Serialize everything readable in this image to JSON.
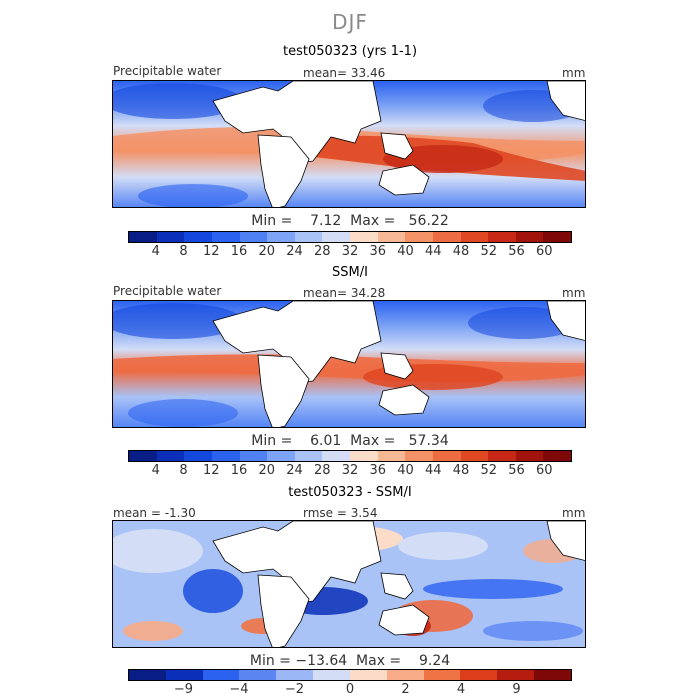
{
  "season": "DJF",
  "colors": {
    "abs": [
      "#081d85",
      "#0b2fb8",
      "#1447dd",
      "#2c62f0",
      "#4f80f4",
      "#7ea4f5",
      "#a9c3f7",
      "#d3ddf6",
      "#fbdcc9",
      "#f7b896",
      "#f39266",
      "#ed6c42",
      "#df4823",
      "#c62815",
      "#a2140b",
      "#7e0707"
    ],
    "diff": [
      "#081d85",
      "#0b2fb8",
      "#2c62f0",
      "#5b86f2",
      "#9bb7f6",
      "#d3ddf6",
      "#fbdcc9",
      "#f7ab86",
      "#ef7344",
      "#dc3e1c",
      "#b51d10",
      "#7e0707"
    ],
    "land": "#ffffff"
  },
  "panels": [
    {
      "subtitle": "test050323 (yrs 1-1)",
      "left_label": "Precipitable water",
      "center_label": "mean=   33.46",
      "unit": "mm",
      "minmax": "Min =    7.12  Max =   56.22",
      "ticks": [
        "4",
        "8",
        "12",
        "16",
        "20",
        "24",
        "28",
        "32",
        "36",
        "40",
        "44",
        "48",
        "52",
        "56",
        "60"
      ],
      "field_stats": {
        "mean": 33.46,
        "min": 7.12,
        "max": 56.22
      }
    },
    {
      "subtitle": "SSM/I",
      "left_label": "Precipitable water",
      "center_label": "mean=   34.28",
      "unit": "mm",
      "minmax": "Min =    6.01  Max =   57.34",
      "ticks": [
        "4",
        "8",
        "12",
        "16",
        "20",
        "24",
        "28",
        "32",
        "36",
        "40",
        "44",
        "48",
        "52",
        "56",
        "60"
      ],
      "field_stats": {
        "mean": 34.28,
        "min": 6.01,
        "max": 57.34
      }
    },
    {
      "subtitle": "test050323 - SSM/I",
      "left_label": "mean =   -1.30",
      "center_label": "rmse =    3.54",
      "unit": "mm",
      "minmax": "Min = −13.64  Max =    9.24",
      "ticks": [
        "−9",
        "−4",
        "−2",
        "0",
        "2",
        "4",
        "9"
      ],
      "field_stats": {
        "mean": -1.3,
        "rmse": 3.54,
        "min": -13.64,
        "max": 9.24
      }
    }
  ]
}
